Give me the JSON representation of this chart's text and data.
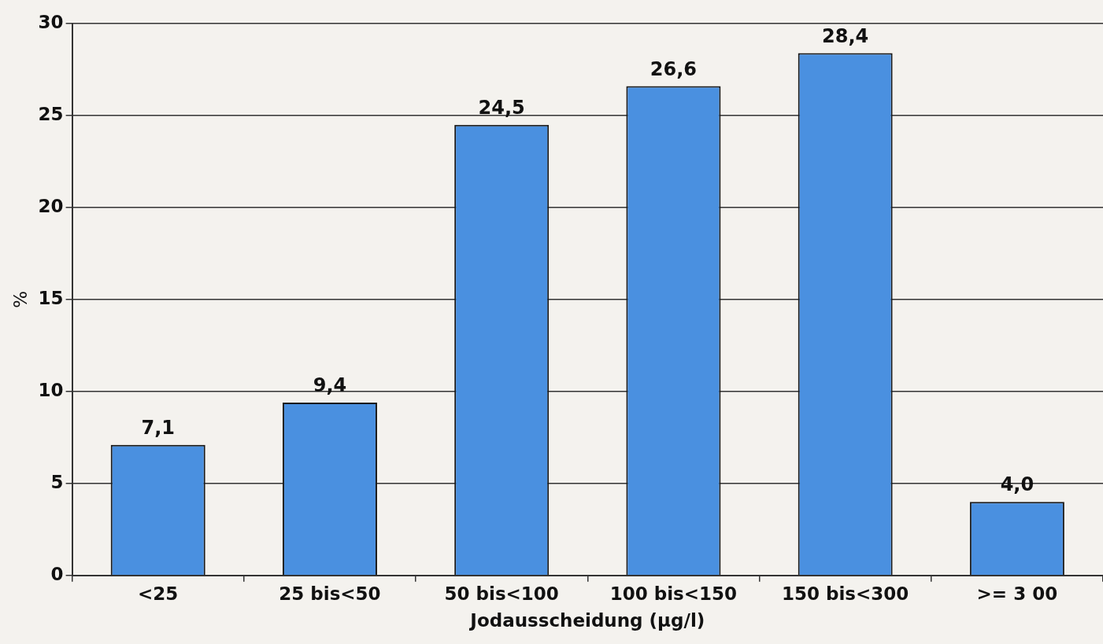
{
  "chart_data": {
    "type": "bar",
    "xlabel": "Jodausscheidung (µg/l)",
    "ylabel": "%",
    "categories": [
      "<25",
      "25 bis<50",
      "50 bis<100",
      "100 bis<150",
      "150 bis<300",
      ">= 3 00"
    ],
    "values": [
      7.1,
      9.4,
      24.5,
      26.6,
      28.4,
      4.0
    ],
    "value_labels": [
      "7,1",
      "9,4",
      "24,5",
      "26,6",
      "28,4",
      "4,0"
    ],
    "color": "#4a90e0",
    "ylim": [
      0,
      30
    ],
    "yticks": [
      0,
      5,
      10,
      15,
      20,
      25,
      30
    ],
    "grid": "y",
    "legend": false
  }
}
